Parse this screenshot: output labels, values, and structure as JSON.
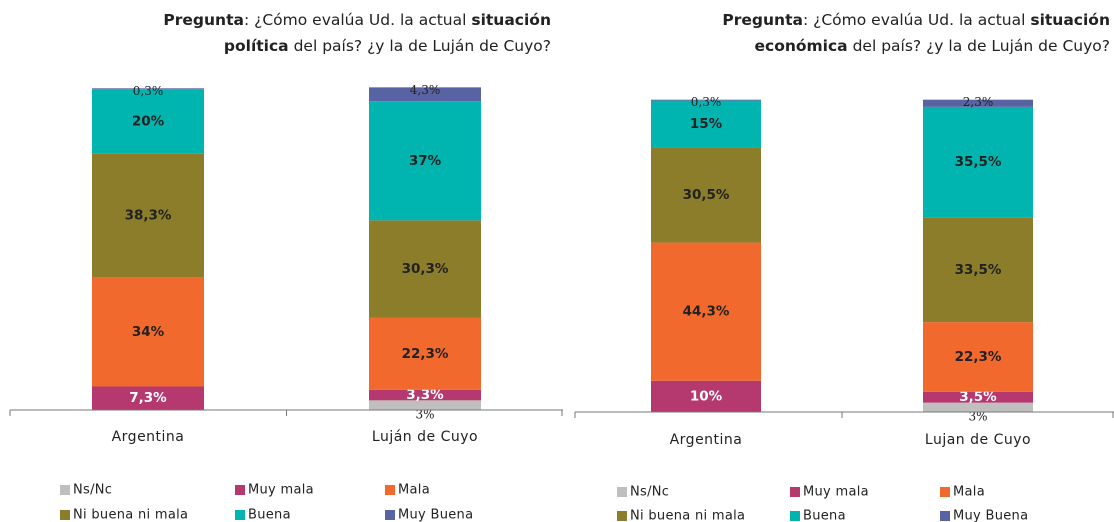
{
  "chart_data": [
    {
      "type": "stacked_bar",
      "title": [
        [
          {
            "text": "Pregunta",
            "bold": true
          },
          {
            "text": ": ¿Cómo evalúa Ud. la actual ",
            "bold": false
          },
          {
            "text": "situación",
            "bold": true
          }
        ],
        [
          {
            "text": "política",
            "bold": true
          },
          {
            "text": " del país? ¿y la de Luján de Cuyo?",
            "bold": false
          }
        ]
      ],
      "categories": [
        "Argentina",
        "Luján de Cuyo"
      ],
      "ylim": [
        0,
        100
      ],
      "series": [
        {
          "name": "Ns/Nc",
          "color": "#bfbfbf",
          "values": [
            null,
            3
          ],
          "value_labels": [
            null,
            "3%"
          ]
        },
        {
          "name": "Muy mala",
          "color": "#b5396e",
          "values": [
            7.3,
            3.3
          ],
          "value_labels": [
            "7,3%",
            "3,3%"
          ]
        },
        {
          "name": "Mala",
          "color": "#f2692e",
          "values": [
            34,
            22.3
          ],
          "value_labels": [
            "34%",
            "22,3%"
          ]
        },
        {
          "name": "Ni buena ni mala",
          "color": "#8b7d2a",
          "values": [
            38.3,
            30.3
          ],
          "value_labels": [
            "38,3%",
            "30,3%"
          ]
        },
        {
          "name": "Buena",
          "color": "#00b5b0",
          "values": [
            20,
            37
          ],
          "value_labels": [
            "20%",
            "37%"
          ]
        },
        {
          "name": "Muy Buena",
          "color": "#5763a2",
          "values": [
            0.3,
            4.3
          ],
          "value_labels": [
            "0,3%",
            "4,3%"
          ]
        }
      ]
    },
    {
      "type": "stacked_bar",
      "title": [
        [
          {
            "text": "Pregunta",
            "bold": true
          },
          {
            "text": ": ¿Cómo evalúa Ud. la actual ",
            "bold": false
          },
          {
            "text": "situación",
            "bold": true
          }
        ],
        [
          {
            "text": "económica",
            "bold": true
          },
          {
            "text": " del país? ¿y la de Luján de Cuyo?",
            "bold": false
          }
        ]
      ],
      "categories": [
        "Argentina",
        "Lujan de Cuyo"
      ],
      "ylim": [
        0,
        100
      ],
      "series": [
        {
          "name": "Ns/Nc",
          "color": "#bfbfbf",
          "values": [
            null,
            3
          ],
          "value_labels": [
            null,
            "3%"
          ]
        },
        {
          "name": "Muy mala",
          "color": "#b5396e",
          "values": [
            10,
            3.5
          ],
          "value_labels": [
            "10%",
            "3,5%"
          ]
        },
        {
          "name": "Mala",
          "color": "#f2692e",
          "values": [
            44.3,
            22.3
          ],
          "value_labels": [
            "44,3%",
            "22,3%"
          ]
        },
        {
          "name": "Ni buena ni mala",
          "color": "#8b7d2a",
          "values": [
            30.5,
            33.5
          ],
          "value_labels": [
            "30,5%",
            "33,5%"
          ]
        },
        {
          "name": "Buena",
          "color": "#00b5b0",
          "values": [
            15,
            35.5
          ],
          "value_labels": [
            "15%",
            "35,5%"
          ]
        },
        {
          "name": "Muy Buena",
          "color": "#5763a2",
          "values": [
            0.3,
            2.3
          ],
          "value_labels": [
            "0,3%",
            "2,3%"
          ]
        }
      ]
    }
  ]
}
